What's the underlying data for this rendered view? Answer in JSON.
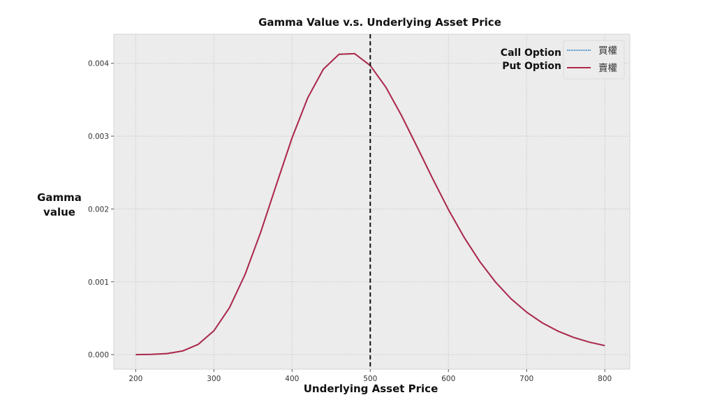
{
  "chart_data": {
    "type": "line",
    "title": "Gamma Value v.s. Underlying Asset Price",
    "xlabel": "Underlying Asset Price",
    "ylabel_lines": [
      "Gamma",
      "value"
    ],
    "xlim": [
      172,
      832
    ],
    "ylim": [
      -0.0002,
      0.0044
    ],
    "xticks": [
      200,
      300,
      400,
      500,
      600,
      700,
      800
    ],
    "xtick_labels": [
      "200",
      "300",
      "400",
      "500",
      "600",
      "700",
      "800"
    ],
    "yticks": [
      0,
      0.001,
      0.002,
      0.003,
      0.004
    ],
    "ytick_labels": [
      "0.000",
      "0.001",
      "0.002",
      "0.003",
      "0.004"
    ],
    "grid": true,
    "vline": {
      "x": 500,
      "style": "dashed",
      "color": "#111111"
    },
    "legend": {
      "placement": "top-right",
      "annotations": [
        "Call Option",
        "Put Option"
      ],
      "entries": [
        "買權",
        "賣權"
      ]
    },
    "x": [
      200,
      220,
      240,
      260,
      280,
      300,
      320,
      340,
      360,
      380,
      400,
      420,
      440,
      460,
      480,
      500,
      520,
      540,
      560,
      580,
      600,
      620,
      640,
      660,
      680,
      700,
      720,
      740,
      760,
      780,
      800
    ],
    "series": [
      {
        "name": "買權",
        "color": "#4a90c8",
        "style": "dotted",
        "values": [
          4e-07,
          3e-06,
          1.42e-05,
          5.06e-05,
          0.000141,
          0.000327,
          0.000645,
          0.001103,
          0.001685,
          0.002337,
          0.002977,
          0.003526,
          0.00392,
          0.004124,
          0.004133,
          0.00397,
          0.003671,
          0.003284,
          0.002852,
          0.002413,
          0.001993,
          0.001612,
          0.00128,
          0.000999,
          0.000768,
          0.000583,
          0.000436,
          0.000323,
          0.000237,
          0.000172,
          0.000124
        ]
      },
      {
        "name": "賣權",
        "color": "#b0284a",
        "style": "solid",
        "values": [
          4e-07,
          3e-06,
          1.42e-05,
          5.06e-05,
          0.000141,
          0.000327,
          0.000645,
          0.001103,
          0.001685,
          0.002337,
          0.002977,
          0.003526,
          0.00392,
          0.004124,
          0.004133,
          0.00397,
          0.003671,
          0.003284,
          0.002852,
          0.002413,
          0.001993,
          0.001612,
          0.00128,
          0.000999,
          0.000768,
          0.000583,
          0.000436,
          0.000323,
          0.000237,
          0.000172,
          0.000124
        ]
      }
    ]
  }
}
